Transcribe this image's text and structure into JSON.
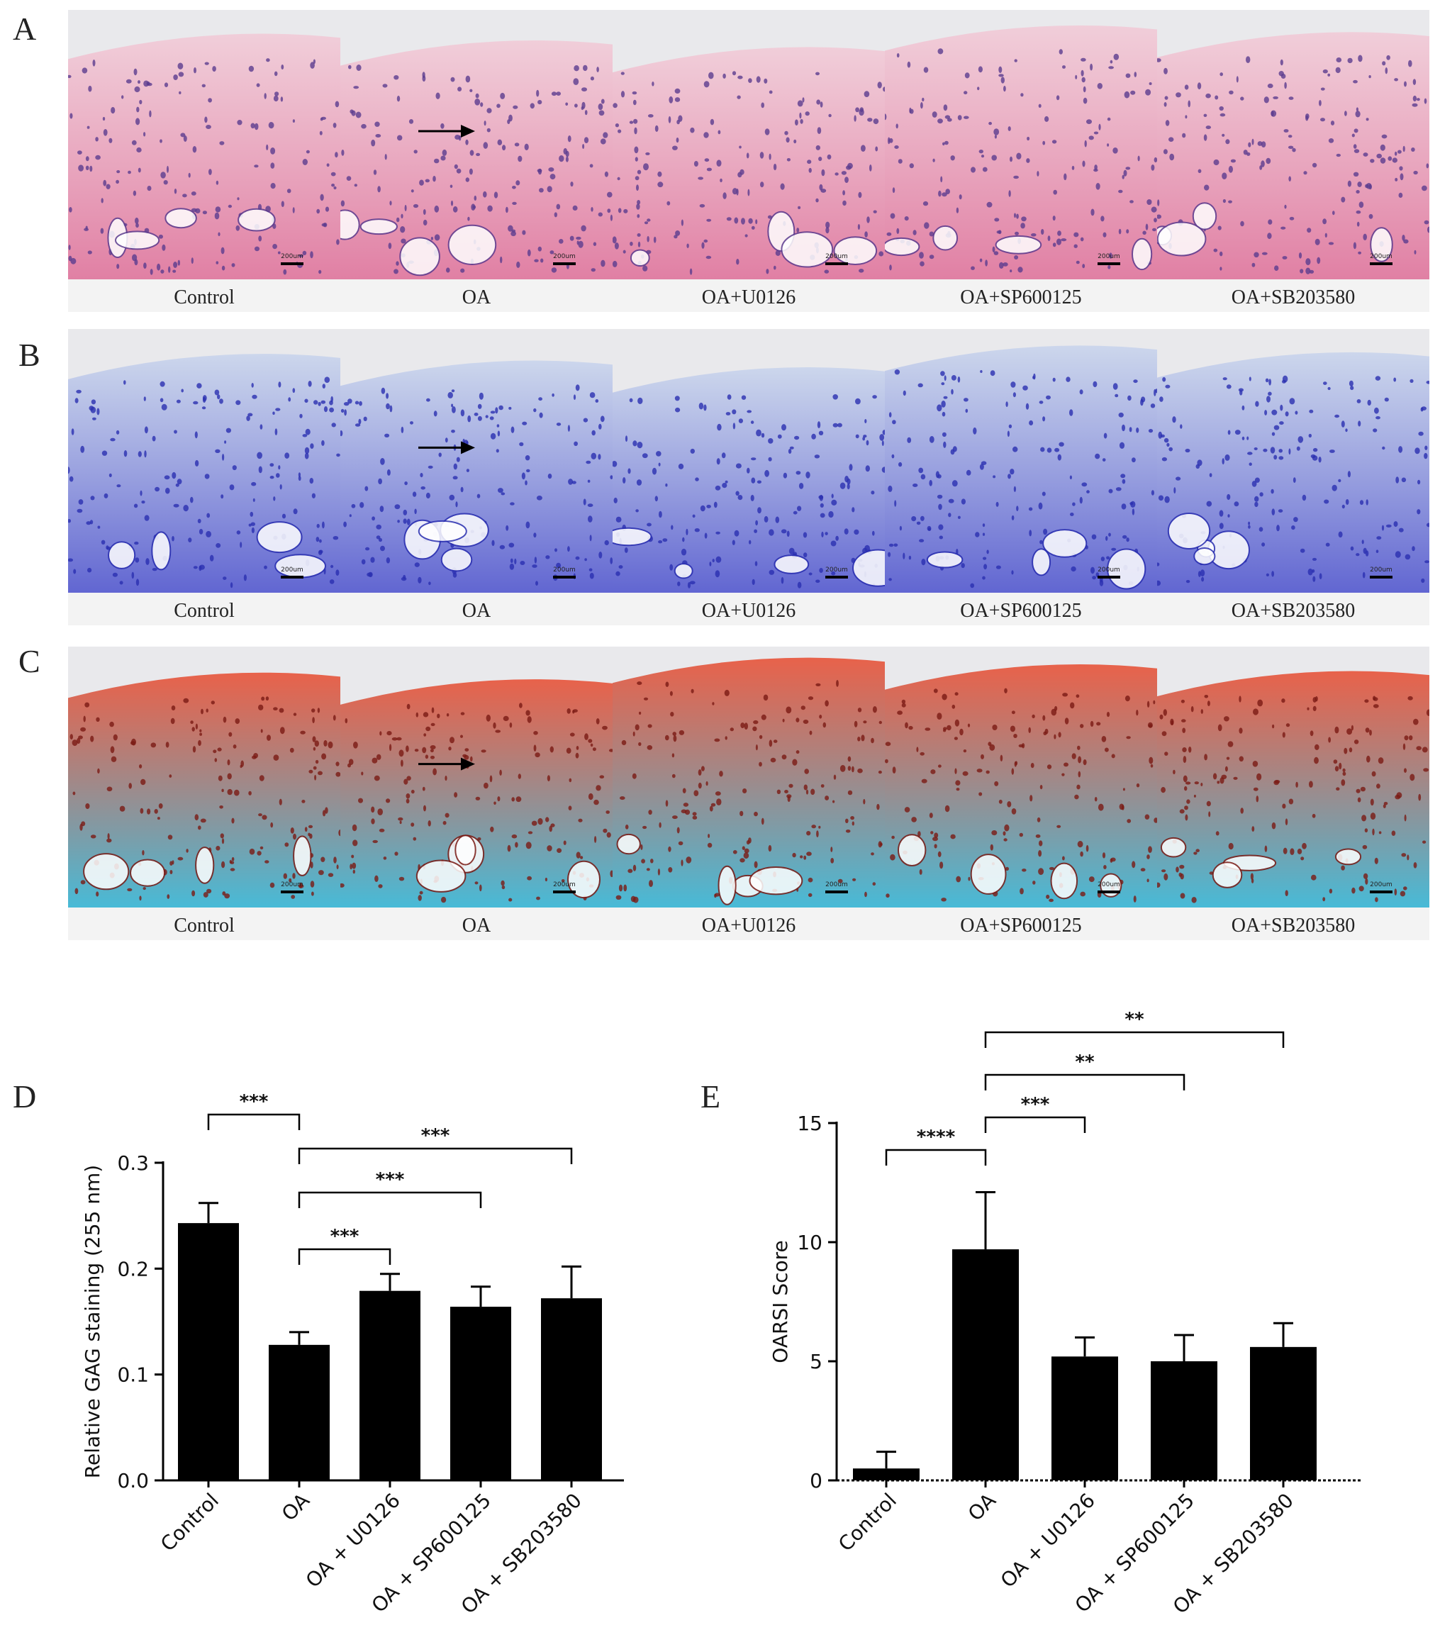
{
  "panels": {
    "A": {
      "letter": "A",
      "captions": [
        "Control",
        "OA",
        "OA+U0126",
        "OA+SP600125",
        "OA+SB203580"
      ],
      "scale_bar": "200um",
      "stain_colors": {
        "background": "#f2c9d6",
        "cells": "#5b3c8f",
        "tissue": "#e07aa0"
      }
    },
    "B": {
      "letter": "B",
      "captions": [
        "Control",
        "OA",
        "OA+U0126",
        "OA+SP600125",
        "OA+SB203580"
      ],
      "scale_bar": "200um",
      "stain_colors": {
        "background": "#c7d3ec",
        "cells": "#2a2fb0",
        "tissue": "#5a5fd0"
      }
    },
    "C": {
      "letter": "C",
      "captions": [
        "Control",
        "OA",
        "OA+U0126",
        "OA+SP600125",
        "OA+SB203580"
      ],
      "scale_bar": "200um",
      "stain_colors": {
        "background": "#e84a2e",
        "cells": "#7a1a14",
        "tissue": "#3fb8d6"
      }
    },
    "D": {
      "letter": "D"
    },
    "E": {
      "letter": "E"
    }
  },
  "chart_data": [
    {
      "type": "bar",
      "panel": "D",
      "categories": [
        "Control",
        "OA",
        "OA + U0126",
        "OA + SP600125",
        "OA + SB203580"
      ],
      "values": [
        0.243,
        0.128,
        0.179,
        0.164,
        0.172
      ],
      "errors": [
        0.019,
        0.012,
        0.016,
        0.019,
        0.03
      ],
      "ylabel": "Relative GAG staining (255 nm)",
      "ylim": [
        0,
        0.3
      ],
      "yticks": [
        "0.0",
        "0.1",
        "0.2",
        "0.3"
      ],
      "significance": [
        {
          "from": 0,
          "to": 1,
          "label": "***"
        },
        {
          "from": 1,
          "to": 2,
          "label": "***"
        },
        {
          "from": 1,
          "to": 3,
          "label": "***"
        },
        {
          "from": 1,
          "to": 4,
          "label": "***"
        }
      ],
      "bar_color": "#000000"
    },
    {
      "type": "bar",
      "panel": "E",
      "categories": [
        "Control",
        "OA",
        "OA + U0126",
        "OA + SP600125",
        "OA + SB203580"
      ],
      "values": [
        0.5,
        9.7,
        5.2,
        5.0,
        5.6
      ],
      "errors": [
        0.7,
        2.4,
        0.8,
        1.1,
        1.0
      ],
      "ylabel": "OARSI Score",
      "ylim": [
        0,
        15
      ],
      "yticks": [
        "0",
        "5",
        "10",
        "15"
      ],
      "significance": [
        {
          "from": 0,
          "to": 1,
          "label": "****"
        },
        {
          "from": 1,
          "to": 2,
          "label": "***"
        },
        {
          "from": 1,
          "to": 3,
          "label": "**"
        },
        {
          "from": 1,
          "to": 4,
          "label": "**"
        }
      ],
      "bar_color": "#000000"
    }
  ]
}
